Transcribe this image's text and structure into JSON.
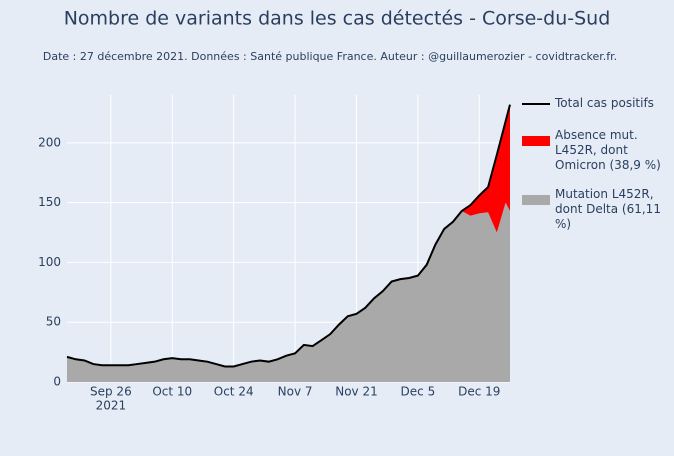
{
  "chart_data": {
    "type": "stacked-area",
    "title": "Nombre de variants dans les cas détectés - Corse-du-Sud",
    "subtitle": "Date : 27 décembre 2021. Données : Santé publique France. Auteur : @guillaumerozier - covidtracker.fr.",
    "x": [
      "2021-09-16",
      "2021-09-18",
      "2021-09-20",
      "2021-09-22",
      "2021-09-24",
      "2021-09-26",
      "2021-09-28",
      "2021-09-30",
      "2021-10-02",
      "2021-10-04",
      "2021-10-06",
      "2021-10-08",
      "2021-10-10",
      "2021-10-12",
      "2021-10-14",
      "2021-10-16",
      "2021-10-18",
      "2021-10-20",
      "2021-10-22",
      "2021-10-24",
      "2021-10-26",
      "2021-10-28",
      "2021-10-30",
      "2021-11-01",
      "2021-11-03",
      "2021-11-05",
      "2021-11-07",
      "2021-11-09",
      "2021-11-11",
      "2021-11-13",
      "2021-11-15",
      "2021-11-17",
      "2021-11-19",
      "2021-11-21",
      "2021-11-23",
      "2021-11-25",
      "2021-11-27",
      "2021-11-29",
      "2021-12-01",
      "2021-12-03",
      "2021-12-05",
      "2021-12-07",
      "2021-12-09",
      "2021-12-11",
      "2021-12-13",
      "2021-12-15",
      "2021-12-17",
      "2021-12-19",
      "2021-12-21",
      "2021-12-23",
      "2021-12-25",
      "2021-12-26"
    ],
    "series": [
      {
        "name": "Mutation L452R, dont Delta (61,11 %)",
        "color": "#a9a9a9",
        "stack": true,
        "values": [
          21,
          19,
          18,
          15,
          14,
          14,
          14,
          14,
          15,
          16,
          17,
          19,
          20,
          19,
          19,
          18,
          17,
          15,
          13,
          13,
          15,
          17,
          18,
          17,
          19,
          22,
          24,
          31,
          30,
          35,
          40,
          48,
          55,
          57,
          62,
          70,
          76,
          84,
          86,
          87,
          89,
          98,
          115,
          128,
          134,
          143,
          139,
          141,
          142,
          125,
          150,
          143
        ]
      },
      {
        "name": "Absence mut. L452R, dont Omicron (38,9 %)",
        "color": "#ff0000",
        "stack": true,
        "values": [
          0,
          0,
          0,
          0,
          0,
          0,
          0,
          0,
          0,
          0,
          0,
          0,
          0,
          0,
          0,
          0,
          0,
          0,
          0,
          0,
          0,
          0,
          0,
          0,
          0,
          0,
          0,
          0,
          0,
          0,
          0,
          0,
          0,
          0,
          0,
          0,
          0,
          0,
          0,
          0,
          0,
          0,
          0,
          0,
          0,
          0,
          9,
          15,
          21,
          65,
          68,
          89
        ]
      },
      {
        "name": "Total cas positifs",
        "color": "#000000",
        "stack": false,
        "values": [
          21,
          19,
          18,
          15,
          14,
          14,
          14,
          14,
          15,
          16,
          17,
          19,
          20,
          19,
          19,
          18,
          17,
          15,
          13,
          13,
          15,
          17,
          18,
          17,
          19,
          22,
          24,
          31,
          30,
          35,
          40,
          48,
          55,
          57,
          62,
          70,
          76,
          84,
          86,
          87,
          89,
          98,
          115,
          128,
          134,
          143,
          148,
          156,
          163,
          190,
          218,
          232
        ]
      }
    ],
    "legend_order": [
      2,
      1,
      0
    ],
    "xlim": [
      "2021-09-16",
      "2021-12-26"
    ],
    "xticks": [
      {
        "value": "2021-09-26",
        "label": "Sep 26"
      },
      {
        "value": "2021-10-10",
        "label": "Oct 10"
      },
      {
        "value": "2021-10-24",
        "label": "Oct 24"
      },
      {
        "value": "2021-11-07",
        "label": "Nov 7"
      },
      {
        "value": "2021-11-21",
        "label": "Nov 21"
      },
      {
        "value": "2021-12-05",
        "label": "Dec 5"
      },
      {
        "value": "2021-12-19",
        "label": "Dec 19"
      }
    ],
    "x_year_label": "2021",
    "ylim": [
      0,
      240
    ],
    "yticks": [
      0,
      50,
      100,
      150,
      200
    ],
    "grid": true
  }
}
